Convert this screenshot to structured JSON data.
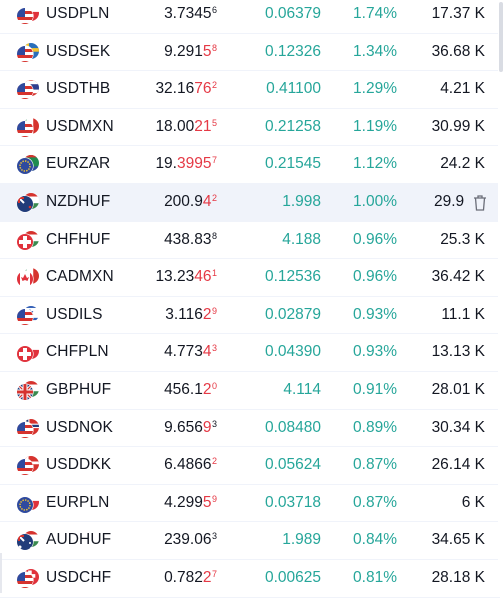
{
  "watchlist": {
    "rows": [
      {
        "symbol": "USDPLN",
        "price_main": "3.7345",
        "price_hl": "",
        "price_sup": "6",
        "sup_dir": "up",
        "change": "0.06379",
        "pct": "1.74%",
        "vol": "17.37 K",
        "flags": [
          "us",
          "pl"
        ]
      },
      {
        "symbol": "USDSEK",
        "price_main": "9.291",
        "price_hl": "5",
        "price_sup": "8",
        "sup_dir": "dn",
        "change": "0.12326",
        "pct": "1.34%",
        "vol": "36.68 K",
        "flags": [
          "us",
          "se"
        ]
      },
      {
        "symbol": "USDTHB",
        "price_main": "32.16",
        "price_hl": "76",
        "price_sup": "2",
        "sup_dir": "dn",
        "change": "0.41100",
        "pct": "1.29%",
        "vol": "4.21 K",
        "flags": [
          "us",
          "th"
        ]
      },
      {
        "symbol": "USDMXN",
        "price_main": "18.00",
        "price_hl": "21",
        "price_sup": "5",
        "sup_dir": "dn",
        "change": "0.21258",
        "pct": "1.19%",
        "vol": "30.99 K",
        "flags": [
          "us",
          "mx"
        ]
      },
      {
        "symbol": "EURZAR",
        "price_main": "19.",
        "price_hl": "3995",
        "price_sup": "7",
        "sup_dir": "dn",
        "change": "0.21545",
        "pct": "1.12%",
        "vol": "24.2 K",
        "flags": [
          "eu",
          "za"
        ]
      },
      {
        "symbol": "NZDHUF",
        "price_main": "200.9",
        "price_hl": "4",
        "price_sup": "2",
        "sup_dir": "dn",
        "change": "1.998",
        "pct": "1.00%",
        "vol": "29.9",
        "flags": [
          "nz",
          "hu"
        ],
        "hover": true
      },
      {
        "symbol": "CHFHUF",
        "price_main": "438.83",
        "price_hl": "",
        "price_sup": "8",
        "sup_dir": "up",
        "change": "4.188",
        "pct": "0.96%",
        "vol": "25.3 K",
        "flags": [
          "ch",
          "hu"
        ]
      },
      {
        "symbol": "CADMXN",
        "price_main": "13.23",
        "price_hl": "46",
        "price_sup": "1",
        "sup_dir": "dn",
        "change": "0.12536",
        "pct": "0.96%",
        "vol": "36.42 K",
        "flags": [
          "ca",
          "mx"
        ]
      },
      {
        "symbol": "USDILS",
        "price_main": "3.116",
        "price_hl": "2",
        "price_sup": "9",
        "sup_dir": "dn",
        "change": "0.02879",
        "pct": "0.93%",
        "vol": "11.1 K",
        "flags": [
          "us",
          "il"
        ]
      },
      {
        "symbol": "CHFPLN",
        "price_main": "4.773",
        "price_hl": "4",
        "price_sup": "3",
        "sup_dir": "dn",
        "change": "0.04390",
        "pct": "0.93%",
        "vol": "13.13 K",
        "flags": [
          "ch",
          "pl"
        ]
      },
      {
        "symbol": "GBPHUF",
        "price_main": "456.1",
        "price_hl": "2",
        "price_sup": "0",
        "sup_dir": "dn",
        "change": "4.114",
        "pct": "0.91%",
        "vol": "28.01 K",
        "flags": [
          "gb",
          "hu"
        ]
      },
      {
        "symbol": "USDNOK",
        "price_main": "9.656",
        "price_hl": "9",
        "price_sup": "3",
        "sup_dir": "up",
        "change": "0.08480",
        "pct": "0.89%",
        "vol": "30.34 K",
        "flags": [
          "us",
          "no"
        ]
      },
      {
        "symbol": "USDDKK",
        "price_main": "6.4866",
        "price_hl": "",
        "price_sup": "2",
        "sup_dir": "dn",
        "change": "0.05624",
        "pct": "0.87%",
        "vol": "26.14 K",
        "flags": [
          "us",
          "dk"
        ]
      },
      {
        "symbol": "EURPLN",
        "price_main": "4.299",
        "price_hl": "5",
        "price_sup": "9",
        "sup_dir": "dn",
        "change": "0.03718",
        "pct": "0.87%",
        "vol": "6 K",
        "flags": [
          "eu",
          "pl"
        ]
      },
      {
        "symbol": "AUDHUF",
        "price_main": "239.06",
        "price_hl": "",
        "price_sup": "3",
        "sup_dir": "up",
        "change": "1.989",
        "pct": "0.84%",
        "vol": "34.65 K",
        "flags": [
          "au",
          "hu"
        ]
      },
      {
        "symbol": "USDCHF",
        "price_main": "0.782",
        "price_hl": "2",
        "price_sup": "7",
        "sup_dir": "dn",
        "change": "0.00625",
        "pct": "0.81%",
        "vol": "28.18 K",
        "flags": [
          "us",
          "ch"
        ]
      }
    ]
  },
  "colors": {
    "up": "#26a69a",
    "down": "#e53945",
    "text": "#131722",
    "hover": "#f0f3fa"
  },
  "icons": {
    "hover_action": "trash-icon"
  }
}
